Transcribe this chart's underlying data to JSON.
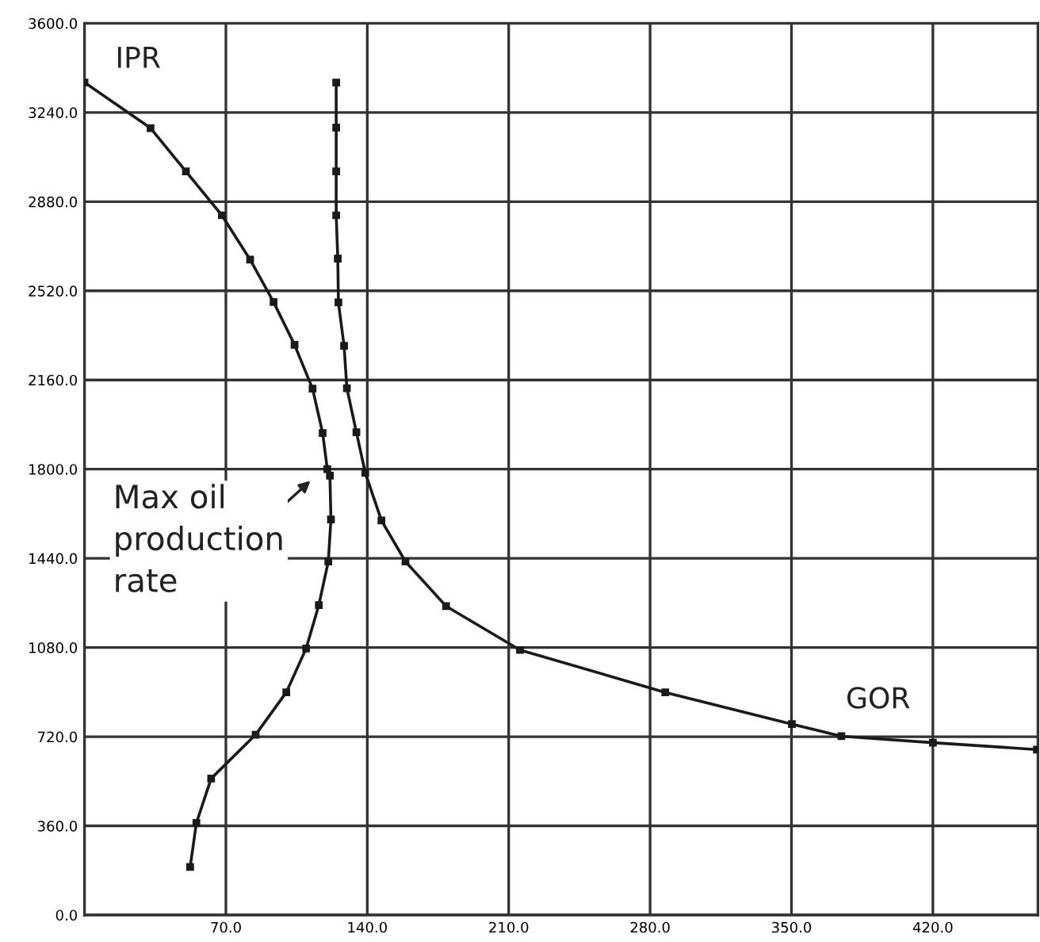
{
  "chart_data": {
    "type": "line",
    "series": [
      {
        "name": "IPR",
        "color": "#1a1a1a",
        "x": [
          0,
          32.7,
          50.2,
          68,
          82,
          93.6,
          104,
          112.9,
          117.9,
          120.2,
          121.5,
          122,
          120.7,
          116,
          109.7,
          99.9,
          84.7,
          62.7,
          55.4,
          52.3
        ],
        "values": [
          3361,
          3177,
          3002,
          2825,
          2646,
          2475,
          2302,
          2125,
          1946,
          1800,
          1774,
          1597,
          1427,
          1251,
          1076,
          899,
          728,
          551,
          372,
          194
        ]
      },
      {
        "name": "GOR",
        "color": "#1a1a1a",
        "x": [
          124.6,
          124.6,
          124.6,
          124.6,
          125.4,
          125.7,
          128.5,
          129.9,
          134.6,
          139,
          147,
          158.9,
          179,
          215.6,
          287.5,
          350.2,
          374.7,
          420,
          471.5
        ],
        "values": [
          3361,
          3179,
          3002,
          2825,
          2650,
          2473,
          2298,
          2127,
          1949,
          1785,
          1593,
          1427,
          1247,
          1070,
          899,
          771,
          722,
          696,
          668
        ]
      }
    ],
    "annotations": [
      "Max oil\nproduction\nrate"
    ],
    "xlim": [
      0,
      472
    ],
    "ylim": [
      0,
      3600
    ],
    "xticks": [
      {
        "value": 70,
        "label": "70.0"
      },
      {
        "value": 140,
        "label": "140.0"
      },
      {
        "value": 210,
        "label": "210.0"
      },
      {
        "value": 280,
        "label": "280.0"
      },
      {
        "value": 350,
        "label": "350.0"
      },
      {
        "value": 420,
        "label": "420.0"
      }
    ],
    "yticks": [
      {
        "value": 0,
        "label": "0.0"
      },
      {
        "value": 360,
        "label": "360.0"
      },
      {
        "value": 720,
        "label": "720.0"
      },
      {
        "value": 1080,
        "label": "1080.0"
      },
      {
        "value": 1440,
        "label": "1440.0"
      },
      {
        "value": 1800,
        "label": "1800.0"
      },
      {
        "value": 2160,
        "label": "2160.0"
      },
      {
        "value": 2520,
        "label": "2520.0"
      },
      {
        "value": 2880,
        "label": "2880.0"
      },
      {
        "value": 3240,
        "label": "3240.0"
      },
      {
        "value": 3600,
        "label": "3600.0"
      }
    ],
    "grid": true,
    "marker": "square",
    "line_style": "solid",
    "legend": false
  }
}
